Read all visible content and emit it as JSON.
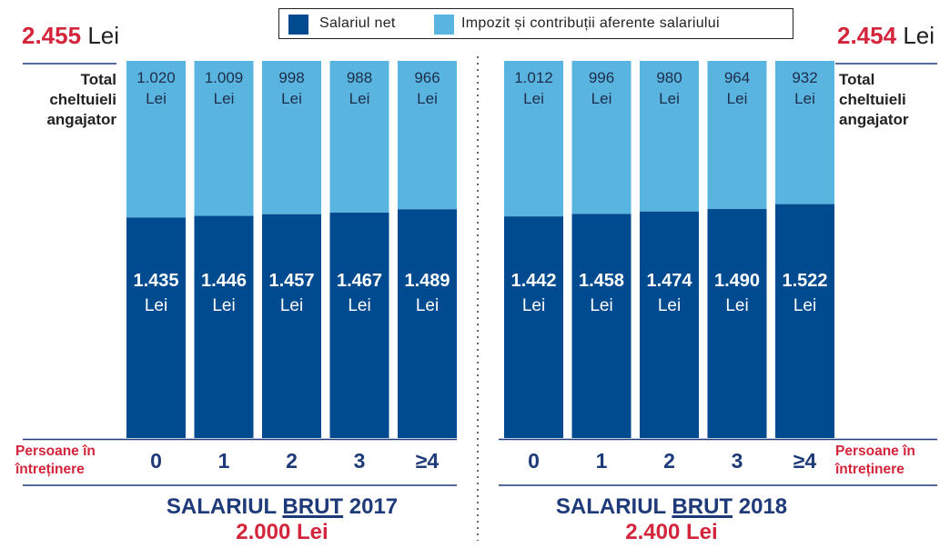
{
  "legend": {
    "net_label": "Salariul net",
    "tax_label": "Impozit și contribuții aferente salariului"
  },
  "colors": {
    "net": "#004a8f",
    "tax": "#5ab4e0",
    "accent_red": "#d3253b",
    "navy_text": "#1e3a78",
    "rule": "#1e3a78"
  },
  "left": {
    "total_value": "2.455",
    "total_unit": "Lei",
    "side_label": [
      "Total",
      "cheltuieli",
      "angajator"
    ],
    "dep_label": [
      "Persoane în",
      "întreținere"
    ],
    "footer_prefix": "SALARIUL ",
    "footer_brut": "BRUT",
    "footer_year": " 2017",
    "footer_amount": "2.000",
    "footer_unit": "Lei"
  },
  "right": {
    "total_value": "2.454",
    "total_unit": "Lei",
    "side_label": [
      "Total",
      "cheltuieli",
      "angajator"
    ],
    "dep_label": [
      "Persoane în",
      "întreținere"
    ],
    "footer_prefix": "SALARIUL ",
    "footer_brut": "BRUT",
    "footer_year": " 2018",
    "footer_amount": "2.400",
    "footer_unit": "Lei"
  },
  "chart_data": [
    {
      "type": "bar",
      "stacked": true,
      "title": "SALARIUL BRUT 2017 2.000 Lei",
      "xlabel": "Persoane în întreținere",
      "categories": [
        "0",
        "1",
        "2",
        "3",
        "≥4"
      ],
      "series": [
        {
          "name": "Salariul net",
          "values": [
            1435,
            1446,
            1457,
            1467,
            1489
          ],
          "labels": [
            "1.435",
            "1.446",
            "1.457",
            "1.467",
            "1.489"
          ]
        },
        {
          "name": "Impozit și contribuții aferente salariului",
          "values": [
            1020,
            1009,
            998,
            988,
            966
          ],
          "labels": [
            "1.020",
            "1.009",
            "998",
            "988",
            "966"
          ]
        }
      ],
      "unit": "Lei",
      "total": 2455
    },
    {
      "type": "bar",
      "stacked": true,
      "title": "SALARIUL BRUT 2018 2.400 Lei",
      "xlabel": "Persoane în întreținere",
      "categories": [
        "0",
        "1",
        "2",
        "3",
        "≥4"
      ],
      "series": [
        {
          "name": "Salariul net",
          "values": [
            1442,
            1458,
            1474,
            1490,
            1522
          ],
          "labels": [
            "1.442",
            "1.458",
            "1.474",
            "1.490",
            "1.522"
          ]
        },
        {
          "name": "Impozit și contribuții aferente salariului",
          "values": [
            1012,
            996,
            980,
            964,
            932
          ],
          "labels": [
            "1.012",
            "996",
            "980",
            "964",
            "932"
          ]
        }
      ],
      "unit": "Lei",
      "total": 2454
    }
  ]
}
